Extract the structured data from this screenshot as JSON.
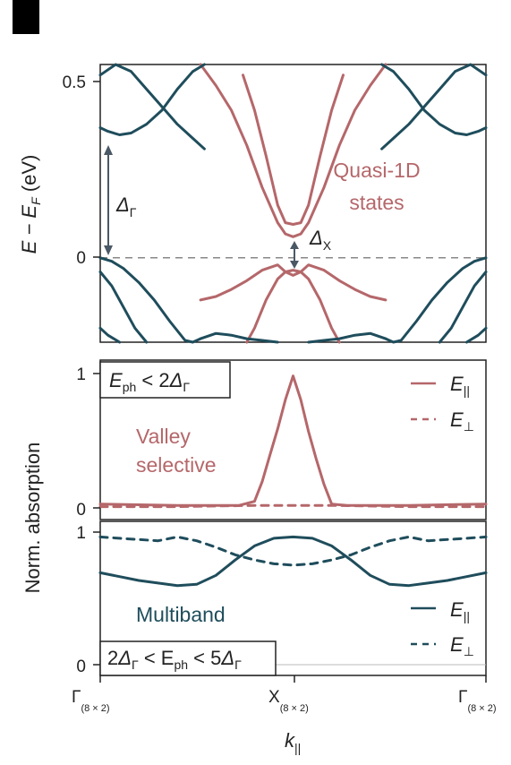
{
  "colors": {
    "red": "#b5676a",
    "teal": "#1f4d5c",
    "frame": "#222222",
    "dashed_fermi": "#888888",
    "panel_mark": "#000000"
  },
  "top_panel": {
    "ylabel": "E − E",
    "ylabel_sub": "F",
    "ylabel_unit": " (eV)",
    "yticks": [
      {
        "value": 0.5,
        "label": "0.5"
      },
      {
        "value": 0,
        "label": "0"
      }
    ],
    "ylim": [
      -0.24,
      0.55
    ],
    "delta_gamma": {
      "symbol": "Δ",
      "sub": "Γ"
    },
    "delta_x": {
      "symbol": "Δ",
      "sub": "X"
    },
    "quasi_label": [
      "Quasi-1D",
      "states"
    ]
  },
  "middle_panel": {
    "ytick_top": "1",
    "ytick_bottom": "0",
    "condition": {
      "E": "E",
      "ph": "ph",
      "rel": " < 2",
      "delta": "Δ",
      "sub": "Γ"
    },
    "legend": [
      {
        "name": "E",
        "sub": "||",
        "style": "solid"
      },
      {
        "name": "E",
        "sub": "⊥",
        "style": "dashed"
      }
    ],
    "label": [
      "Valley",
      "selective"
    ]
  },
  "bottom_panel": {
    "ytick_top": "1",
    "ytick_bottom": "0",
    "condition": {
      "pre": "2",
      "delta1": "Δ",
      "sub1": "Γ",
      "mid": " < E",
      "ph": "ph",
      "rel": " < 5",
      "delta2": "Δ",
      "sub2": "Γ"
    },
    "legend": [
      {
        "name": "E",
        "sub": "||",
        "style": "solid"
      },
      {
        "name": "E",
        "sub": "⊥",
        "style": "dashed"
      }
    ],
    "label": "Multiband"
  },
  "shared_ylabel": "Norm. absorption",
  "xaxis": {
    "ticks": [
      {
        "main": "Γ",
        "sub": "(8 × 2)"
      },
      {
        "main": "X",
        "sub": "(8 × 2)"
      },
      {
        "main": "Γ",
        "sub": "(8 × 2)"
      }
    ],
    "label": "k",
    "label_sub": "||"
  },
  "chart_data": [
    {
      "type": "line",
      "title": "",
      "x_range": [
        0,
        1
      ],
      "xticks": [
        "Γ(8 × 2)",
        "X(8 × 2)",
        "Γ(8 × 2)"
      ],
      "ylabel": "E − EF (eV)",
      "ylim": [
        -0.24,
        0.55
      ],
      "note": "x is k|| from Γ (0) through X (0.5) to Γ (1)",
      "series": [
        {
          "color": "red",
          "x": [
            0.37,
            0.4,
            0.43,
            0.46,
            0.48,
            0.5,
            0.52,
            0.54,
            0.57,
            0.6,
            0.63
          ],
          "y": [
            0.52,
            0.42,
            0.29,
            0.15,
            0.1,
            0.095,
            0.1,
            0.15,
            0.29,
            0.42,
            0.52
          ]
        },
        {
          "color": "red",
          "x": [
            0.26,
            0.3,
            0.34,
            0.38,
            0.42,
            0.46,
            0.48,
            0.5,
            0.52,
            0.54,
            0.58,
            0.62,
            0.66,
            0.7,
            0.74
          ],
          "y": [
            0.55,
            0.49,
            0.42,
            0.32,
            0.2,
            0.1,
            0.068,
            0.06,
            0.068,
            0.1,
            0.2,
            0.32,
            0.42,
            0.49,
            0.55
          ]
        },
        {
          "color": "red",
          "x": [
            0.38,
            0.4,
            0.43,
            0.46,
            0.48,
            0.5,
            0.52,
            0.54,
            0.57,
            0.6,
            0.62
          ],
          "y": [
            -0.24,
            -0.2,
            -0.12,
            -0.06,
            -0.04,
            -0.035,
            -0.04,
            -0.06,
            -0.12,
            -0.2,
            -0.24
          ]
        },
        {
          "color": "red",
          "x": [
            0.26,
            0.3,
            0.34,
            0.38,
            0.42,
            0.46,
            0.48,
            0.5,
            0.52,
            0.54,
            0.58,
            0.62,
            0.66,
            0.7,
            0.74
          ],
          "y": [
            -0.12,
            -0.11,
            -0.09,
            -0.065,
            -0.035,
            -0.02,
            -0.04,
            -0.05,
            -0.04,
            -0.02,
            -0.035,
            -0.065,
            -0.09,
            -0.11,
            -0.12
          ]
        },
        {
          "color": "teal",
          "x": [
            0,
            0.02,
            0.05,
            0.08,
            0.12,
            0.16,
            0.2,
            0.24,
            0.27
          ],
          "y": [
            0.37,
            0.36,
            0.35,
            0.355,
            0.38,
            0.42,
            0.48,
            0.53,
            0.55
          ]
        },
        {
          "color": "teal",
          "x": [
            0.73,
            0.76,
            0.8,
            0.84,
            0.88,
            0.92,
            0.95,
            0.98,
            1.0
          ],
          "y": [
            0.55,
            0.53,
            0.48,
            0.42,
            0.38,
            0.355,
            0.35,
            0.36,
            0.37
          ]
        },
        {
          "color": "teal",
          "x": [
            0,
            0.04,
            0.08,
            0.12,
            0.16,
            0.2,
            0.24,
            0.27
          ],
          "y": [
            0.52,
            0.55,
            0.53,
            0.48,
            0.43,
            0.38,
            0.34,
            0.31
          ]
        },
        {
          "color": "teal",
          "x": [
            0.73,
            0.76,
            0.8,
            0.84,
            0.88,
            0.92,
            0.96,
            1.0
          ],
          "y": [
            0.31,
            0.34,
            0.38,
            0.43,
            0.48,
            0.53,
            0.55,
            0.52
          ]
        },
        {
          "color": "teal",
          "x": [
            0,
            0.03,
            0.06,
            0.1,
            0.14,
            0.18,
            0.22,
            0.24,
            0.26
          ],
          "y": [
            0.0,
            -0.01,
            -0.03,
            -0.07,
            -0.12,
            -0.18,
            -0.235,
            -0.24,
            -0.23
          ]
        },
        {
          "color": "teal",
          "x": [
            0.74,
            0.76,
            0.78,
            0.82,
            0.86,
            0.9,
            0.94,
            0.97,
            1.0
          ],
          "y": [
            -0.23,
            -0.24,
            -0.235,
            -0.18,
            -0.12,
            -0.07,
            -0.03,
            -0.01,
            0.0
          ]
        },
        {
          "color": "teal",
          "x": [
            0,
            0.03,
            0.06,
            0.09,
            0.12
          ],
          "y": [
            -0.04,
            -0.08,
            -0.14,
            -0.2,
            -0.24
          ]
        },
        {
          "color": "teal",
          "x": [
            0.88,
            0.91,
            0.94,
            0.97,
            1.0
          ],
          "y": [
            -0.24,
            -0.2,
            -0.14,
            -0.08,
            -0.04
          ]
        },
        {
          "color": "teal",
          "x": [
            0,
            0.02,
            0.05
          ],
          "y": [
            -0.2,
            -0.22,
            -0.24
          ]
        },
        {
          "color": "teal",
          "x": [
            0.95,
            0.98,
            1.0
          ],
          "y": [
            -0.24,
            -0.22,
            -0.2
          ]
        },
        {
          "color": "teal",
          "x": [
            0.26,
            0.3,
            0.34,
            0.38,
            0.42,
            0.46
          ],
          "y": [
            -0.23,
            -0.215,
            -0.22,
            -0.23,
            -0.235,
            -0.24
          ]
        },
        {
          "color": "teal",
          "x": [
            0.54,
            0.58,
            0.62,
            0.66,
            0.7,
            0.74
          ],
          "y": [
            -0.24,
            -0.235,
            -0.23,
            -0.22,
            -0.215,
            -0.23
          ]
        }
      ],
      "fermi_level": 0,
      "annotations": [
        "ΔΓ",
        "ΔX",
        "Quasi-1D states"
      ]
    },
    {
      "type": "line",
      "title": "",
      "x_range": [
        0,
        1
      ],
      "ylabel": "Norm. absorption",
      "ylim": [
        -0.04,
        1.12
      ],
      "series": [
        {
          "name": "E||",
          "color": "red",
          "style": "solid",
          "x": [
            0,
            0.2,
            0.36,
            0.4,
            0.42,
            0.44,
            0.46,
            0.48,
            0.5,
            0.52,
            0.54,
            0.56,
            0.58,
            0.6,
            0.64,
            0.8,
            1.0
          ],
          "y": [
            0.03,
            0.02,
            0.02,
            0.05,
            0.2,
            0.4,
            0.6,
            0.82,
            1.0,
            0.82,
            0.58,
            0.37,
            0.18,
            0.03,
            0.02,
            0.02,
            0.03
          ]
        },
        {
          "name": "E⊥",
          "color": "red",
          "style": "dashed",
          "x": [
            0,
            0.2,
            0.4,
            0.5,
            0.6,
            0.8,
            1.0
          ],
          "y": [
            0.01,
            0.01,
            0.02,
            0.02,
            0.02,
            0.01,
            0.01
          ]
        }
      ],
      "annotations": [
        "Eph < 2ΔΓ",
        "Valley selective"
      ]
    },
    {
      "type": "line",
      "title": "",
      "x_range": [
        0,
        1
      ],
      "ylabel": "Norm. absorption",
      "ylim": [
        -0.04,
        1.08
      ],
      "series": [
        {
          "name": "E||",
          "color": "teal",
          "style": "solid",
          "x": [
            0,
            0.05,
            0.1,
            0.15,
            0.2,
            0.25,
            0.3,
            0.35,
            0.4,
            0.45,
            0.5,
            0.55,
            0.6,
            0.65,
            0.7,
            0.75,
            0.8,
            0.85,
            0.9,
            0.95,
            1.0
          ],
          "y": [
            0.72,
            0.69,
            0.66,
            0.64,
            0.62,
            0.63,
            0.7,
            0.82,
            0.93,
            0.99,
            1.0,
            0.99,
            0.93,
            0.82,
            0.7,
            0.63,
            0.62,
            0.64,
            0.66,
            0.69,
            0.72
          ]
        },
        {
          "name": "E⊥",
          "color": "teal",
          "style": "dashed",
          "x": [
            0,
            0.05,
            0.1,
            0.15,
            0.2,
            0.25,
            0.3,
            0.35,
            0.4,
            0.45,
            0.5,
            0.55,
            0.6,
            0.65,
            0.7,
            0.75,
            0.8,
            0.85,
            0.9,
            0.95,
            1.0
          ],
          "y": [
            1.0,
            0.99,
            0.98,
            0.97,
            1.0,
            0.97,
            0.92,
            0.86,
            0.82,
            0.79,
            0.78,
            0.79,
            0.82,
            0.86,
            0.92,
            0.97,
            1.0,
            0.97,
            0.98,
            0.99,
            1.0
          ]
        }
      ],
      "annotations": [
        "2ΔΓ < Eph < 5ΔΓ",
        "Multiband"
      ]
    }
  ]
}
